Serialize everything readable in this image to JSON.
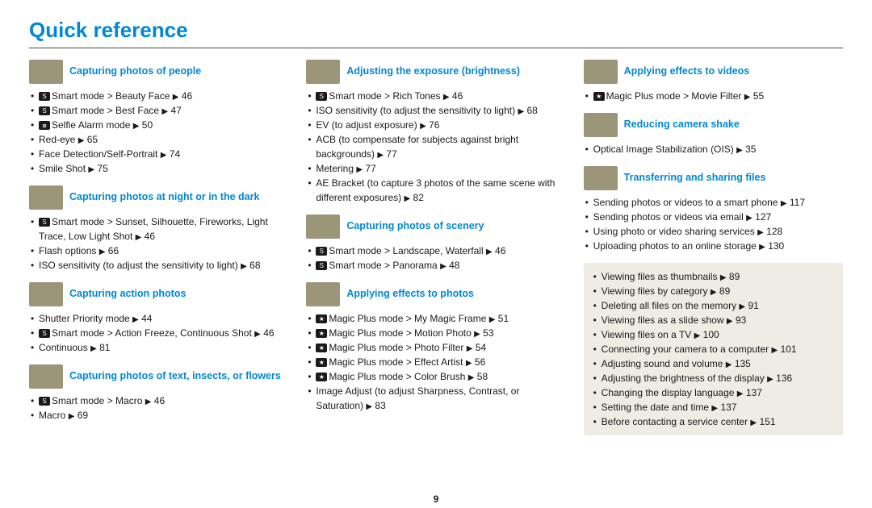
{
  "title": "Quick reference",
  "page_number": "9",
  "colors": {
    "accent": "#0088d4",
    "text": "#1a1a1a",
    "thumb_bg": "#9b957a",
    "box_bg": "#eeece3"
  },
  "arrow": "▶",
  "icons": {
    "S": "S",
    "star": "★",
    "selfie": "⧇"
  },
  "col1": [
    {
      "title": "Capturing photos of people",
      "items": [
        {
          "icon": "S",
          "text": "Smart mode > Beauty Face ",
          "page": "46"
        },
        {
          "icon": "S",
          "text": "Smart mode > Best Face ",
          "page": "47"
        },
        {
          "icon": "selfie",
          "text": "Selfie Alarm mode ",
          "page": "50"
        },
        {
          "text": "Red-eye ",
          "page": "65"
        },
        {
          "text": "Face Detection/Self-Portrait ",
          "page": "74"
        },
        {
          "text": "Smile Shot ",
          "page": "75"
        }
      ]
    },
    {
      "title": "Capturing photos at night or in the dark",
      "items": [
        {
          "icon": "S",
          "text": "Smart mode > Sunset, Silhouette, Fireworks, Light Trace, Low Light Shot ",
          "page": "46"
        },
        {
          "text": "Flash options ",
          "page": "66"
        },
        {
          "text": "ISO sensitivity (to adjust the sensitivity to light) ",
          "page": "68"
        }
      ]
    },
    {
      "title": "Capturing action photos",
      "items": [
        {
          "text": "Shutter Priority mode ",
          "page": "44"
        },
        {
          "icon": "S",
          "text": "Smart mode > Action Freeze, Continuous Shot ",
          "page": "46"
        },
        {
          "text": "Continuous ",
          "page": "81"
        }
      ]
    },
    {
      "title": "Capturing photos of text, insects, or flowers",
      "items": [
        {
          "icon": "S",
          "text": "Smart mode > Macro ",
          "page": "46"
        },
        {
          "text": "Macro ",
          "page": "69"
        }
      ]
    }
  ],
  "col2": [
    {
      "title": "Adjusting the exposure (brightness)",
      "items": [
        {
          "icon": "S",
          "text": "Smart mode > Rich Tones ",
          "page": "46"
        },
        {
          "text": "ISO sensitivity (to adjust the sensitivity to light) ",
          "page": "68"
        },
        {
          "text": "EV (to adjust exposure) ",
          "page": "76"
        },
        {
          "text": "ACB (to compensate for subjects against bright backgrounds) ",
          "page": "77"
        },
        {
          "text": "Metering ",
          "page": "77"
        },
        {
          "text": "AE Bracket (to capture 3 photos of the same scene with different exposures) ",
          "page": "82"
        }
      ]
    },
    {
      "title": "Capturing photos of scenery",
      "items": [
        {
          "icon": "S",
          "text": "Smart mode > Landscape, Waterfall ",
          "page": "46"
        },
        {
          "icon": "S",
          "text": "Smart mode > Panorama ",
          "page": "48"
        }
      ]
    },
    {
      "title": "Applying effects to photos",
      "items": [
        {
          "icon": "star",
          "text": "Magic Plus mode > My Magic Frame ",
          "page": "51"
        },
        {
          "icon": "star",
          "text": "Magic Plus mode > Motion Photo ",
          "page": "53"
        },
        {
          "icon": "star",
          "text": "Magic Plus mode > Photo Filter ",
          "page": "54"
        },
        {
          "icon": "star",
          "text": "Magic Plus mode > Effect Artist ",
          "page": "56"
        },
        {
          "icon": "star",
          "text": "Magic Plus mode > Color Brush ",
          "page": "58"
        },
        {
          "text": "Image Adjust (to adjust Sharpness, Contrast, or Saturation) ",
          "page": "83"
        }
      ]
    }
  ],
  "col3": [
    {
      "title": "Applying effects to videos",
      "items": [
        {
          "icon": "star",
          "text": "Magic Plus mode > Movie Filter ",
          "page": "55"
        }
      ]
    },
    {
      "title": "Reducing camera shake",
      "items": [
        {
          "text": "Optical Image Stabilization (OIS) ",
          "page": "35"
        }
      ]
    },
    {
      "title": "Transferring and sharing files",
      "items": [
        {
          "text": "Sending photos or videos to a smart phone ",
          "page": "117"
        },
        {
          "text": "Sending photos or videos via email ",
          "page": "127"
        },
        {
          "text": "Using photo or video sharing services ",
          "page": "128"
        },
        {
          "text": "Uploading photos to an online storage ",
          "page": "130"
        }
      ]
    }
  ],
  "box": [
    {
      "text": "Viewing files as thumbnails ",
      "page": "89"
    },
    {
      "text": "Viewing files by category ",
      "page": "89"
    },
    {
      "text": "Deleting all files on the memory ",
      "page": "91"
    },
    {
      "text": "Viewing files as a slide show ",
      "page": "93"
    },
    {
      "text": "Viewing files on a TV ",
      "page": "100"
    },
    {
      "text": "Connecting your camera to a computer ",
      "page": "101"
    },
    {
      "text": "Adjusting sound and volume ",
      "page": "135"
    },
    {
      "text": "Adjusting the brightness of the display ",
      "page": "136"
    },
    {
      "text": "Changing the display language ",
      "page": "137"
    },
    {
      "text": "Setting the date and time ",
      "page": "137"
    },
    {
      "text": "Before contacting a service center ",
      "page": "151"
    }
  ]
}
